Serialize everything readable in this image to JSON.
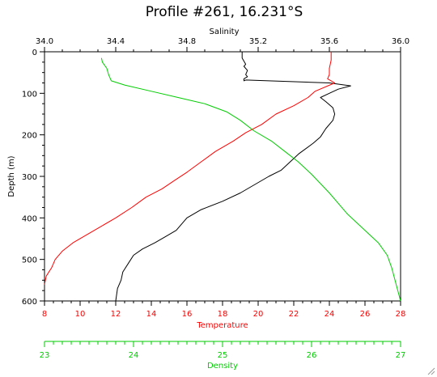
{
  "chart_data": {
    "type": "line",
    "title": "Profile #261, 16.231°S",
    "ylabel": "Depth (m)",
    "ylim": [
      600,
      0
    ],
    "yticks": [
      "0",
      "100",
      "200",
      "300",
      "400",
      "500",
      "600"
    ],
    "axes": {
      "salinity": {
        "label": "Salinity",
        "range": [
          34.0,
          36.0
        ],
        "color": "#000000",
        "ticks": [
          "34.0",
          "34.4",
          "34.8",
          "35.2",
          "35.6",
          "36.0"
        ]
      },
      "temperature": {
        "label": "Temperature",
        "range": [
          8,
          28
        ],
        "color": "#ff0000",
        "ticks": [
          "8",
          "10",
          "12",
          "14",
          "16",
          "18",
          "20",
          "22",
          "24",
          "26",
          "28"
        ]
      },
      "density": {
        "label": "Density",
        "range": [
          23,
          27
        ],
        "color": "#00cc00",
        "ticks": [
          "23",
          "24",
          "25",
          "26",
          "27"
        ]
      }
    },
    "series": [
      {
        "axis": "salinity",
        "color": "#000000",
        "x": [
          35.11,
          35.11,
          35.13,
          35.12,
          35.14,
          35.13,
          35.14,
          35.12,
          35.12,
          35.13,
          35.6,
          35.72,
          35.65,
          35.6,
          35.55,
          35.58,
          35.62,
          35.63,
          35.62,
          35.58,
          35.55,
          35.51,
          35.43,
          35.38,
          35.33,
          35.26,
          35.1,
          35.0,
          34.88,
          34.8,
          34.74,
          34.68,
          34.62,
          34.55,
          34.5,
          34.47,
          34.44,
          34.43,
          34.41,
          34.4
        ],
        "y": [
          0,
          15,
          30,
          35,
          45,
          55,
          60,
          65,
          70,
          68,
          75,
          82,
          90,
          100,
          110,
          120,
          135,
          150,
          165,
          185,
          205,
          220,
          245,
          265,
          285,
          300,
          340,
          360,
          380,
          400,
          430,
          445,
          460,
          475,
          490,
          510,
          530,
          550,
          570,
          600
        ]
      },
      {
        "axis": "temperature",
        "color": "#ff0000",
        "x": [
          24.1,
          24.1,
          24.0,
          24.0,
          23.9,
          24.3,
          23.2,
          22.8,
          22.0,
          21.0,
          20.2,
          19.3,
          18.6,
          17.6,
          16.8,
          16.0,
          15.3,
          14.6,
          13.7,
          12.9,
          12.0,
          10.8,
          9.6,
          9.0,
          8.6,
          8.4,
          8.1,
          8.0
        ],
        "y": [
          0,
          20,
          40,
          55,
          65,
          75,
          95,
          110,
          130,
          150,
          175,
          195,
          215,
          240,
          265,
          290,
          310,
          330,
          350,
          375,
          400,
          430,
          460,
          480,
          500,
          520,
          540,
          560
        ]
      },
      {
        "axis": "density",
        "color": "#00cc00",
        "x": [
          23.64,
          23.65,
          23.7,
          23.72,
          23.75,
          23.9,
          24.2,
          24.5,
          24.8,
          25.05,
          25.2,
          25.35,
          25.55,
          25.7,
          25.85,
          26.0,
          26.2,
          26.4,
          26.6,
          26.75,
          26.85,
          26.9,
          26.95,
          27.0
        ],
        "y": [
          15,
          25,
          40,
          55,
          70,
          80,
          95,
          110,
          125,
          145,
          165,
          190,
          215,
          240,
          265,
          295,
          340,
          390,
          430,
          460,
          490,
          520,
          560,
          600
        ]
      }
    ]
  }
}
